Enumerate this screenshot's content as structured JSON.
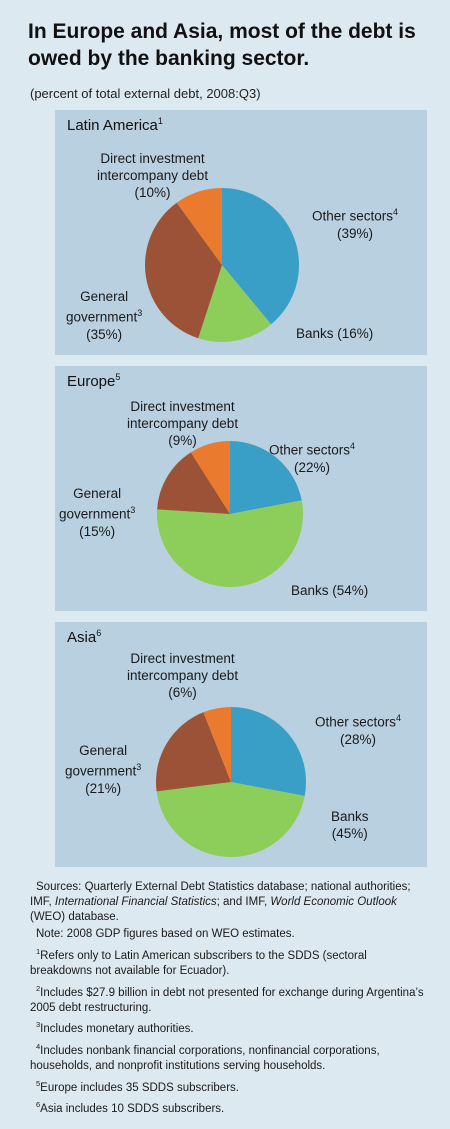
{
  "header": {
    "title": "In Europe and Asia, most of the debt is owed by the banking sector.",
    "subtitle": "(percent of total external debt, 2008:Q3)"
  },
  "colors": {
    "other_sectors": "#3a9fc7",
    "banks": "#8dcd5a",
    "general_government": "#9c5236",
    "direct_investment": "#ea7a2d",
    "panel_bg": "#b8d0df",
    "page_bg": "#dde9f0"
  },
  "chart_data": [
    {
      "type": "pie",
      "title": "Latin America",
      "title_footnote": "1",
      "slices": [
        {
          "key": "other",
          "label": "Other sectors",
          "footnote": "4",
          "value": 39,
          "value_label": "(39%)"
        },
        {
          "key": "banks",
          "label": "Banks",
          "footnote": "",
          "value": 16,
          "value_label": "(16%)"
        },
        {
          "key": "gov",
          "label_line1": "General",
          "label_line2": "government",
          "footnote": "3",
          "value": 35,
          "value_label": "(35%)"
        },
        {
          "key": "direct",
          "label_line1": "Direct investment",
          "label_line2": "intercompany debt",
          "footnote": "",
          "value": 10,
          "value_label": "(10%)"
        }
      ]
    },
    {
      "type": "pie",
      "title": "Europe",
      "title_footnote": "5",
      "slices": [
        {
          "key": "other",
          "label": "Other sectors",
          "footnote": "4",
          "value": 22,
          "value_label": "(22%)"
        },
        {
          "key": "banks",
          "label": "Banks",
          "footnote": "",
          "value": 54,
          "value_label": "(54%)"
        },
        {
          "key": "gov",
          "label_line1": "General",
          "label_line2": "government",
          "footnote": "3",
          "value": 15,
          "value_label": "(15%)"
        },
        {
          "key": "direct",
          "label_line1": "Direct investment",
          "label_line2": "intercompany debt",
          "footnote": "",
          "value": 9,
          "value_label": "(9%)"
        }
      ]
    },
    {
      "type": "pie",
      "title": "Asia",
      "title_footnote": "6",
      "slices": [
        {
          "key": "other",
          "label": "Other sectors",
          "footnote": "4",
          "value": 28,
          "value_label": "(28%)"
        },
        {
          "key": "banks",
          "label": "Banks",
          "footnote": "",
          "value": 45,
          "value_label": "(45%)"
        },
        {
          "key": "gov",
          "label_line1": "General",
          "label_line2": "government",
          "footnote": "3",
          "value": 21,
          "value_label": "(21%)"
        },
        {
          "key": "direct",
          "label_line1": "Direct investment",
          "label_line2": "intercompany debt",
          "footnote": "",
          "value": 6,
          "value_label": "(6%)"
        }
      ]
    }
  ],
  "notes": {
    "sources_prefix": "Sources: Quarterly External Debt Statistics database; national authorities; IMF, ",
    "sources_italic1": "International Financial Statistics",
    "sources_mid": "; and IMF, ",
    "sources_italic2": "World Economic Outlook",
    "sources_suffix": " (WEO) database.",
    "note": "Note: 2008 GDP figures based on WEO estimates.",
    "footnotes": [
      {
        "mark": "1",
        "text": "Refers only to Latin American subscribers to the SDDS (sectoral breakdowns not available for Ecuador)."
      },
      {
        "mark": "2",
        "text": "Includes $27.9 billion in debt not presented for exchange during Argentina’s 2005 debt restructuring."
      },
      {
        "mark": "3",
        "text": "Includes monetary authorities."
      },
      {
        "mark": "4",
        "text": "Includes nonbank financial corporations, nonfinancial corporations, households, and nonprofit institutions serving households."
      },
      {
        "mark": "5",
        "text": "Europe includes 35 SDDS subscribers."
      },
      {
        "mark": "6",
        "text": "Asia includes 10 SDDS subscribers."
      }
    ]
  }
}
